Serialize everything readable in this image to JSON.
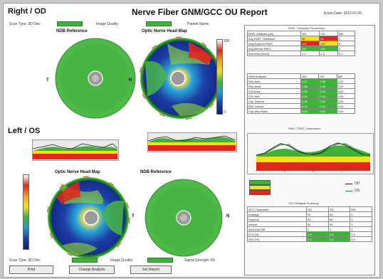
{
  "header": {
    "title": "Nerve Fiber GNM/GCC OU Report",
    "right_label": "Exam Date: 2012-01-05",
    "sub_left": "Scan Type: 3D Disc",
    "sub_mid": "Image Quality:",
    "sub_right": "Patient Name"
  },
  "sections": {
    "right": "Right / OD",
    "left": "Left / OS"
  },
  "maps": {
    "od_ref_title": "NDB Reference",
    "od_thick_title": "Optic Nerve Head Map",
    "os_thick_title": "Optic Nerve Head Map",
    "os_ref_title": "NDB Reference",
    "od_ref_letter": "T",
    "od_thick_letter": "N",
    "os_thick_letter": "T",
    "os_ref_letter": "N"
  },
  "colorbar": {
    "top": "200",
    "bottom": "0"
  },
  "bottom_bar": {
    "left_label": "Scan Type: 3D Disc",
    "mid_label": "Image Quality:",
    "right_label": "Signal Strength: 65"
  },
  "buttons": {
    "print": "Print",
    "change_analysis": "Change Analysis",
    "send_report": "Set Report"
  },
  "right_panel": {
    "top_title": "RNFL Thickness Parameters",
    "table1_headers": [
      "RNFL Analysis (µm)",
      "OD",
      "OS",
      "Diff"
    ],
    "table1_rows": [
      [
        "Avg RNFL Thickness",
        "98",
        "96",
        "2"
      ],
      [
        "Avg Superior RNFL",
        "102",
        "110",
        "8"
      ],
      [
        "Avg Inferior RNFL",
        "115",
        "118",
        "3"
      ],
      [
        "Rim Area (mm2)",
        "1.2",
        "1.3",
        "0.1"
      ]
    ],
    "table2_headers": [
      "ONH Analysis",
      "OD",
      "OS",
      "Diff"
    ],
    "table2_rows": [
      [
        "Rim Area",
        "1.21",
        "1.28",
        "0.07"
      ],
      [
        "Disc Area",
        "1.88",
        "1.95",
        "0.07"
      ],
      [
        "C/D Area",
        "0.36",
        "0.34",
        "0.02"
      ],
      [
        "C/D Vert",
        "0.55",
        "0.51",
        "0.04"
      ],
      [
        "Cup Volume",
        "0.08",
        "0.06",
        "0.02"
      ],
      [
        "Rim Volume",
        "0.15",
        "0.19",
        "0.04"
      ],
      [
        "Cup Disc Ratio",
        "0.53",
        "0.52",
        "0.01"
      ]
    ],
    "profile_title": "RNFL TSNIT Comparison",
    "legend_od": "OD",
    "legend_os": "OS",
    "table3_title": "GCC Analysis Summary",
    "table3_headers": [
      "GCC Parameter",
      "OD",
      "OS",
      "Diff"
    ],
    "table3_rows": [
      [
        "Average",
        "92",
        "94",
        "2"
      ],
      [
        "Superior",
        "93",
        "96",
        "3"
      ],
      [
        "Inferior",
        "91",
        "92",
        "1"
      ],
      [
        "Intra Eye Diff",
        "2",
        "4",
        "2"
      ],
      [
        "FLV (%)",
        "0.5",
        "0.8",
        "0.3"
      ],
      [
        "GLV (%)",
        "2.1",
        "1.6",
        "0.5"
      ]
    ]
  },
  "colors": {
    "normal": "#3fb23a",
    "borderline": "#f2e21a",
    "abnormal": "#e2261c",
    "white": "#ffffff",
    "od_line": "#1a1a1a",
    "os_line": "#1c8a2a"
  },
  "profiles": {
    "od_x_ticks": [
      "T",
      "S",
      "N",
      "I",
      "T"
    ],
    "od_curve": [
      55,
      62,
      80,
      96,
      88,
      70,
      60,
      58,
      64,
      86,
      98,
      90,
      72,
      58,
      54
    ],
    "os_curve": [
      52,
      60,
      76,
      92,
      92,
      74,
      62,
      56,
      60,
      80,
      94,
      95,
      78,
      60,
      52
    ]
  }
}
